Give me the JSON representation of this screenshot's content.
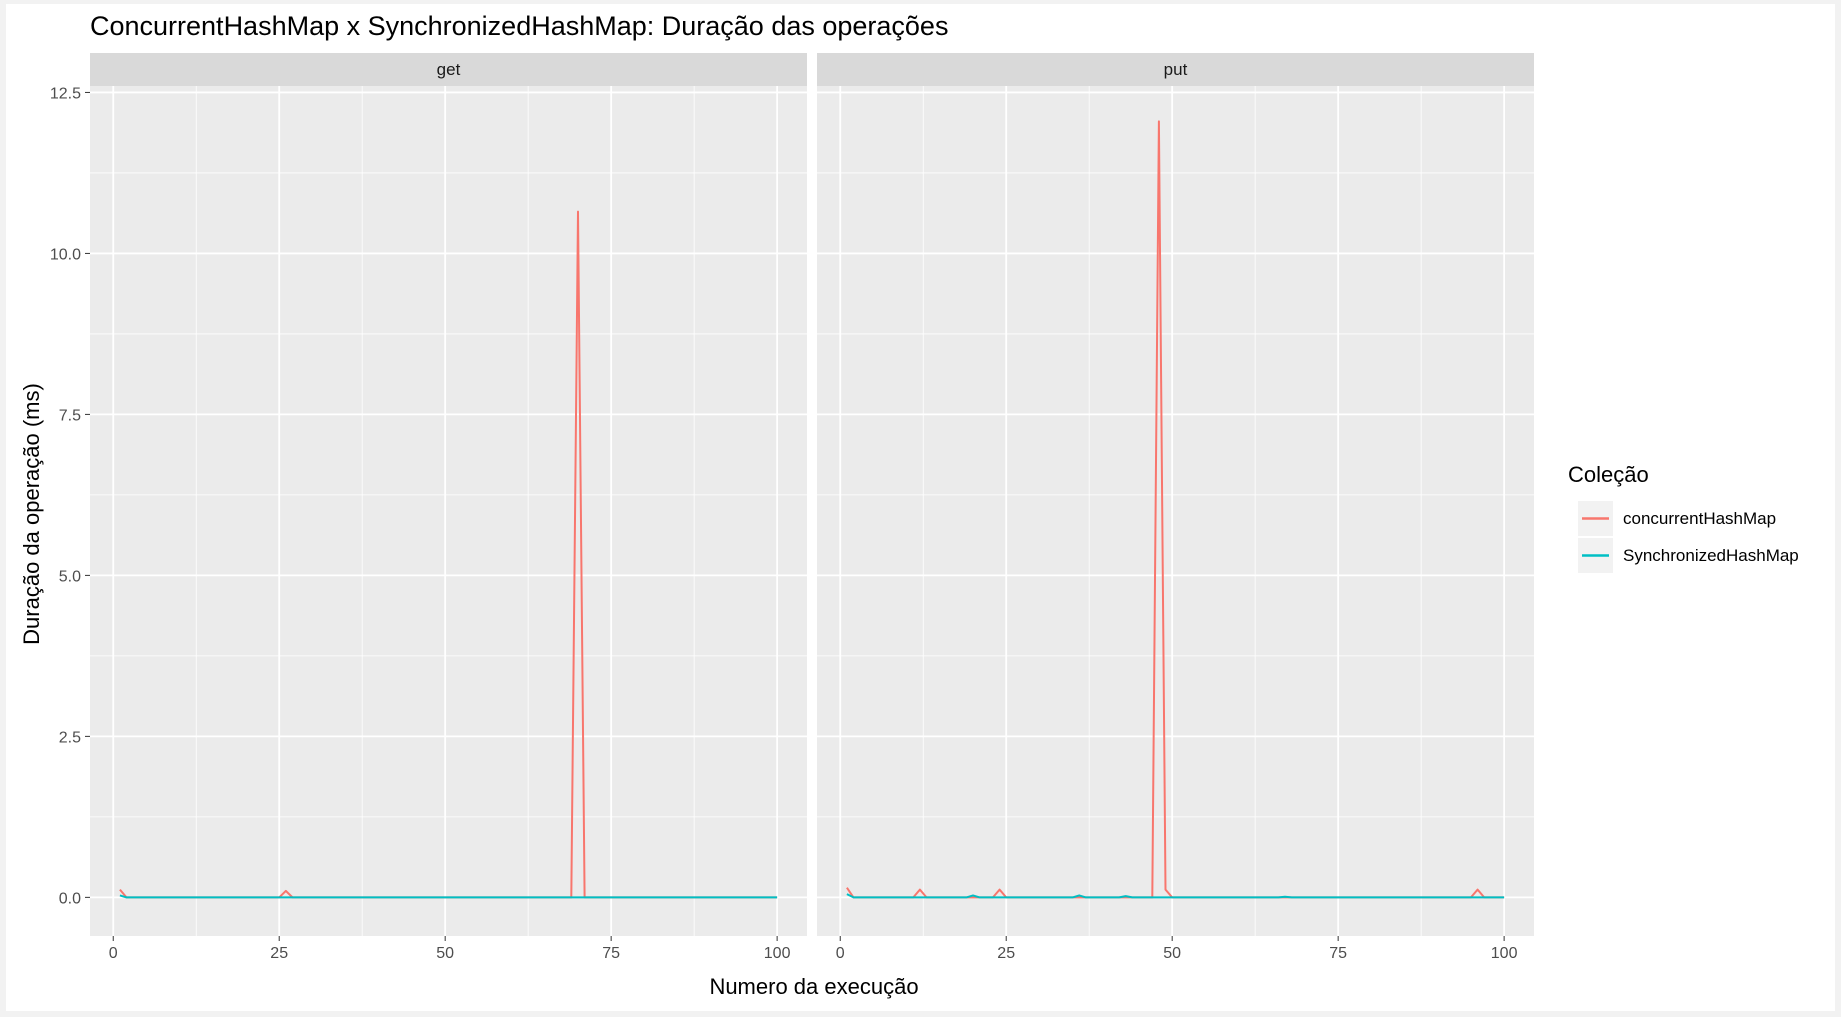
{
  "chart_data": {
    "type": "line",
    "title": "ConcurrentHashMap x SynchronizedHashMap: Duração das operações",
    "xlabel": "Numero da execução",
    "ylabel": "Duração da operação (ms)",
    "xlim": [
      -3.5,
      104.5
    ],
    "ylim": [
      -0.6,
      12.6
    ],
    "x_ticks": [
      0,
      25,
      50,
      75,
      100
    ],
    "x_tick_labels": [
      "0",
      "25",
      "50",
      "75",
      "100"
    ],
    "y_ticks": [
      0,
      2.5,
      5,
      7.5,
      10,
      12.5
    ],
    "y_tick_labels": [
      "0.0",
      "2.5",
      "5.0",
      "7.5",
      "10.0",
      "12.5"
    ],
    "grid": true,
    "legend": {
      "title": "Coleção",
      "placement": "right",
      "entries": [
        {
          "name": "concurrentHashMap",
          "color": "#F8766D"
        },
        {
          "name": "SynchronizedHashMap",
          "color": "#00BFC4"
        }
      ]
    },
    "panels": [
      {
        "label": "get",
        "series": [
          {
            "name": "concurrentHashMap",
            "color": "#F8766D",
            "x": [
              1,
              2,
              25,
              26,
              27,
              69,
              70,
              71,
              100
            ],
            "y": [
              0.12,
              0.0,
              0.0,
              0.1,
              0.0,
              0.0,
              10.65,
              0.0,
              0.0
            ]
          },
          {
            "name": "SynchronizedHashMap",
            "color": "#00BFC4",
            "x": [
              1,
              2,
              100
            ],
            "y": [
              0.03,
              0.0,
              0.0
            ]
          }
        ]
      },
      {
        "label": "put",
        "series": [
          {
            "name": "concurrentHashMap",
            "color": "#F8766D",
            "x": [
              1,
              2,
              11,
              12,
              13,
              23,
              24,
              25,
              47,
              48,
              49,
              50,
              95,
              96,
              97,
              100
            ],
            "y": [
              0.15,
              0.0,
              0.0,
              0.12,
              0.0,
              0.0,
              0.12,
              0.0,
              0.0,
              12.05,
              0.12,
              0.0,
              0.0,
              0.12,
              0.0,
              0.0
            ]
          },
          {
            "name": "SynchronizedHashMap",
            "color": "#00BFC4",
            "x": [
              1,
              2,
              19,
              20,
              21,
              35,
              36,
              37,
              42,
              43,
              44,
              66,
              67,
              68,
              100
            ],
            "y": [
              0.05,
              0.0,
              0.0,
              0.03,
              0.0,
              0.0,
              0.03,
              0.0,
              0.0,
              0.02,
              0.0,
              0.0,
              0.01,
              0.0,
              0.0
            ]
          }
        ]
      }
    ]
  }
}
